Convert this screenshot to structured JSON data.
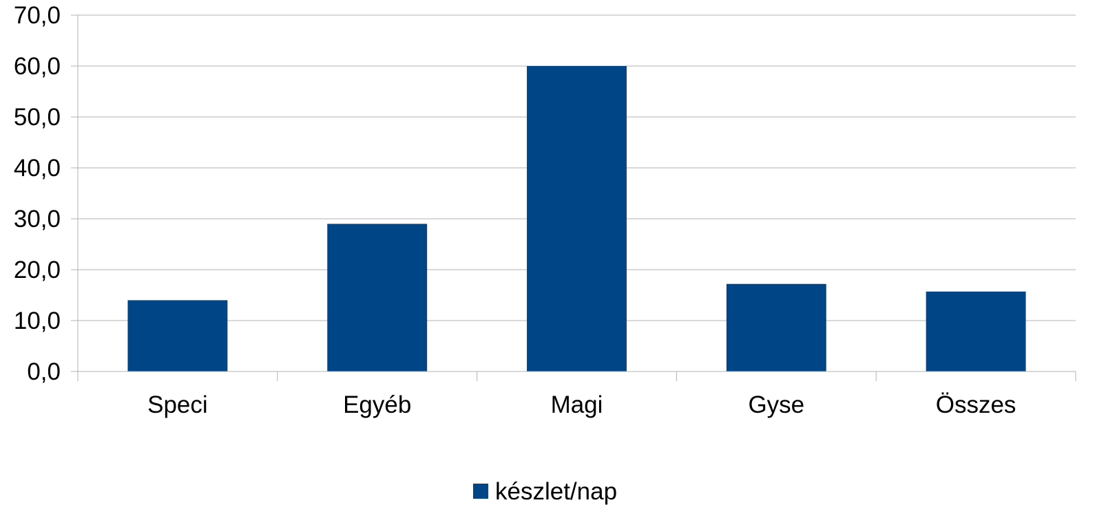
{
  "chart_data": {
    "type": "bar",
    "categories": [
      "Speci",
      "Egyéb",
      "Magi",
      "Gyse",
      "Összes"
    ],
    "series": [
      {
        "name": "készlet/nap",
        "values": [
          14.0,
          29.0,
          60.0,
          17.2,
          15.7
        ],
        "color": "#004586"
      }
    ],
    "ylim": [
      0,
      70
    ],
    "yticks": [
      0,
      10,
      20,
      30,
      40,
      50,
      60,
      70
    ],
    "ytick_labels": [
      "0,0",
      "10,0",
      "20,0",
      "30,0",
      "40,0",
      "50,0",
      "60,0",
      "70,0"
    ],
    "grid": true,
    "legend_position": "bottom"
  }
}
